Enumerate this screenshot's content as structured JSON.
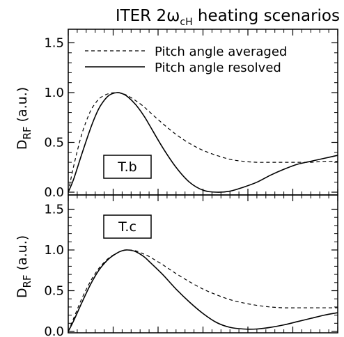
{
  "figure": {
    "title_prefix": "ITER 2",
    "title_omega": "ω",
    "title_sub": "cH",
    "title_suffix": " heating scenarios"
  },
  "legend": {
    "dashed_label": "Pitch angle averaged",
    "solid_label": "Pitch angle resolved"
  },
  "chart_data": [
    {
      "type": "line",
      "panel_label": "T.b",
      "ylabel_main": "D",
      "ylabel_sub": "RF",
      "ylabel_units": "(a.u.)",
      "ylim": [
        0,
        1.6
      ],
      "xlim": [
        0,
        1
      ],
      "yticks": [
        "0.0",
        "0.5",
        "1.0",
        "1.5"
      ],
      "grid": false,
      "legend_position": "top-right",
      "series": [
        {
          "name": "Pitch angle averaged",
          "style": "dashed",
          "x": [
            0,
            0.02,
            0.05,
            0.08,
            0.1,
            0.12,
            0.15,
            0.18,
            0.2,
            0.22,
            0.25,
            0.28,
            0.3,
            0.35,
            0.4,
            0.45,
            0.5,
            0.55,
            0.6,
            0.65,
            0.7,
            0.75,
            0.8,
            0.85,
            0.9,
            0.95,
            1.0
          ],
          "y": [
            0.0,
            0.26,
            0.58,
            0.8,
            0.89,
            0.95,
            0.99,
            1.0,
            0.99,
            0.97,
            0.92,
            0.86,
            0.81,
            0.69,
            0.58,
            0.49,
            0.42,
            0.37,
            0.33,
            0.31,
            0.3,
            0.3,
            0.3,
            0.3,
            0.3,
            0.31,
            0.31
          ]
        },
        {
          "name": "Pitch angle resolved",
          "style": "solid",
          "x": [
            0,
            0.02,
            0.05,
            0.08,
            0.1,
            0.12,
            0.15,
            0.18,
            0.2,
            0.22,
            0.25,
            0.28,
            0.3,
            0.35,
            0.4,
            0.45,
            0.5,
            0.55,
            0.6,
            0.65,
            0.7,
            0.75,
            0.8,
            0.85,
            0.9,
            0.95,
            1.0
          ],
          "y": [
            0.0,
            0.13,
            0.38,
            0.62,
            0.76,
            0.87,
            0.97,
            1.0,
            0.99,
            0.96,
            0.88,
            0.77,
            0.68,
            0.45,
            0.25,
            0.1,
            0.02,
            0.0,
            0.01,
            0.05,
            0.1,
            0.17,
            0.23,
            0.28,
            0.31,
            0.34,
            0.37
          ]
        }
      ]
    },
    {
      "type": "line",
      "panel_label": "T.c",
      "ylabel_main": "D",
      "ylabel_sub": "RF",
      "ylabel_units": "(a.u.)",
      "ylim": [
        0,
        1.6
      ],
      "xlim": [
        0,
        1
      ],
      "yticks": [
        "0.0",
        "0.5",
        "1.0",
        "1.5"
      ],
      "grid": false,
      "series": [
        {
          "name": "Pitch angle averaged",
          "style": "dashed",
          "x": [
            0,
            0.02,
            0.05,
            0.08,
            0.1,
            0.12,
            0.15,
            0.18,
            0.2,
            0.22,
            0.25,
            0.28,
            0.3,
            0.35,
            0.4,
            0.45,
            0.5,
            0.55,
            0.6,
            0.65,
            0.7,
            0.75,
            0.8,
            0.85,
            0.9,
            0.95,
            1.0
          ],
          "y": [
            0.0,
            0.16,
            0.4,
            0.6,
            0.71,
            0.8,
            0.9,
            0.96,
            0.99,
            1.0,
            0.99,
            0.95,
            0.92,
            0.82,
            0.71,
            0.61,
            0.52,
            0.45,
            0.39,
            0.35,
            0.32,
            0.3,
            0.29,
            0.29,
            0.29,
            0.29,
            0.29
          ]
        },
        {
          "name": "Pitch angle resolved",
          "style": "solid",
          "x": [
            0,
            0.02,
            0.05,
            0.08,
            0.1,
            0.12,
            0.15,
            0.18,
            0.2,
            0.22,
            0.25,
            0.28,
            0.3,
            0.35,
            0.4,
            0.45,
            0.5,
            0.55,
            0.6,
            0.65,
            0.7,
            0.75,
            0.8,
            0.85,
            0.9,
            0.95,
            1.0
          ],
          "y": [
            0.0,
            0.13,
            0.35,
            0.56,
            0.68,
            0.78,
            0.89,
            0.96,
            0.99,
            1.0,
            0.98,
            0.92,
            0.86,
            0.7,
            0.52,
            0.36,
            0.22,
            0.11,
            0.05,
            0.03,
            0.03,
            0.05,
            0.08,
            0.12,
            0.16,
            0.2,
            0.23
          ]
        }
      ]
    }
  ]
}
